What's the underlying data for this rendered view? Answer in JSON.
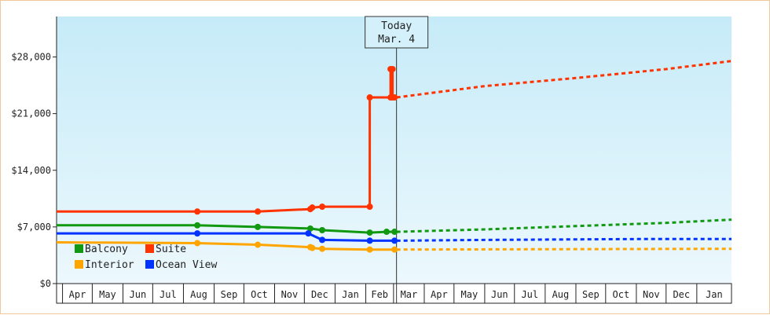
{
  "chart_data": {
    "type": "line",
    "title": "",
    "xlabel": "",
    "ylabel": "",
    "ylim": [
      0,
      33000
    ],
    "y_ticks": [
      {
        "value": 0,
        "label": "$0"
      },
      {
        "value": 7000,
        "label": "$7,000"
      },
      {
        "value": 14000,
        "label": "$14,000"
      },
      {
        "value": 21000,
        "label": "$21,000"
      },
      {
        "value": 28000,
        "label": "$28,000"
      }
    ],
    "x_range": [
      "2014-03-26",
      "2016-02-05"
    ],
    "x_ticks": [
      {
        "date": "2014-04-01",
        "label": "Apr"
      },
      {
        "date": "2014-05-01",
        "label": "May"
      },
      {
        "date": "2014-06-01",
        "label": "Jun"
      },
      {
        "date": "2014-07-01",
        "label": "Jul"
      },
      {
        "date": "2014-08-01",
        "label": "Aug"
      },
      {
        "date": "2014-09-01",
        "label": "Sep"
      },
      {
        "date": "2014-10-01",
        "label": "Oct"
      },
      {
        "date": "2014-11-01",
        "label": "Nov"
      },
      {
        "date": "2014-12-01",
        "label": "Dec"
      },
      {
        "date": "2015-01-01",
        "label": "Jan"
      },
      {
        "date": "2015-02-01",
        "label": "Feb"
      },
      {
        "date": "2015-03-01",
        "label": "Mar"
      },
      {
        "date": "2015-04-01",
        "label": "Apr"
      },
      {
        "date": "2015-05-01",
        "label": "May"
      },
      {
        "date": "2015-06-01",
        "label": "Jun"
      },
      {
        "date": "2015-07-01",
        "label": "Jul"
      },
      {
        "date": "2015-08-01",
        "label": "Aug"
      },
      {
        "date": "2015-09-01",
        "label": "Sep"
      },
      {
        "date": "2015-10-01",
        "label": "Oct"
      },
      {
        "date": "2015-11-01",
        "label": "Nov"
      },
      {
        "date": "2015-12-01",
        "label": "Dec"
      },
      {
        "date": "2016-01-01",
        "label": "Jan"
      }
    ],
    "today": {
      "date": "2015-03-04",
      "label_line1": "Today",
      "label_line2": "Mar. 4"
    },
    "grid": false,
    "legend_position": "bottom-left",
    "series": [
      {
        "name": "Balcony",
        "color": "#119911",
        "history": [
          [
            "2014-03-26",
            7200
          ],
          [
            "2014-08-15",
            7200
          ],
          [
            "2014-10-15",
            7000
          ],
          [
            "2014-12-07",
            6800
          ],
          [
            "2014-12-19",
            6600
          ],
          [
            "2015-02-05",
            6300
          ],
          [
            "2015-02-22",
            6400
          ],
          [
            "2015-03-02",
            6400
          ]
        ],
        "projection": [
          [
            "2015-03-04",
            6400
          ],
          [
            "2015-06-01",
            6700
          ],
          [
            "2015-09-01",
            7100
          ],
          [
            "2015-12-01",
            7500
          ],
          [
            "2016-02-05",
            7900
          ]
        ]
      },
      {
        "name": "Suite",
        "color": "#ff3300",
        "history": [
          [
            "2014-03-26",
            8900
          ],
          [
            "2014-08-15",
            8900
          ],
          [
            "2014-10-15",
            8900
          ],
          [
            "2014-12-07",
            9200
          ],
          [
            "2014-12-09",
            9400
          ],
          [
            "2014-12-19",
            9500
          ],
          [
            "2015-02-05",
            9500
          ],
          [
            "2015-02-05",
            23000
          ],
          [
            "2015-02-26",
            23000
          ],
          [
            "2015-02-26",
            26500
          ],
          [
            "2015-02-28",
            26500
          ],
          [
            "2015-02-28",
            23000
          ],
          [
            "2015-03-02",
            23000
          ]
        ],
        "projection": [
          [
            "2015-03-04",
            23000
          ],
          [
            "2015-06-01",
            24400
          ],
          [
            "2015-09-01",
            25400
          ],
          [
            "2015-12-01",
            26500
          ],
          [
            "2016-02-05",
            27500
          ]
        ]
      },
      {
        "name": "Interior",
        "color": "#ffa500",
        "history": [
          [
            "2014-03-26",
            5100
          ],
          [
            "2014-08-15",
            5000
          ],
          [
            "2014-10-15",
            4800
          ],
          [
            "2014-12-07",
            4500
          ],
          [
            "2014-12-09",
            4400
          ],
          [
            "2014-12-19",
            4300
          ],
          [
            "2015-02-05",
            4200
          ],
          [
            "2015-03-02",
            4200
          ]
        ],
        "projection": [
          [
            "2015-03-04",
            4200
          ],
          [
            "2016-02-05",
            4300
          ]
        ]
      },
      {
        "name": "Ocean View",
        "color": "#0033ff",
        "history": [
          [
            "2014-03-26",
            6200
          ],
          [
            "2014-08-15",
            6200
          ],
          [
            "2014-12-05",
            6200
          ],
          [
            "2014-12-19",
            5400
          ],
          [
            "2015-02-05",
            5300
          ],
          [
            "2015-03-02",
            5300
          ]
        ],
        "projection": [
          [
            "2015-03-04",
            5300
          ],
          [
            "2015-06-01",
            5400
          ],
          [
            "2015-11-01",
            5500
          ],
          [
            "2016-02-05",
            5500
          ]
        ]
      }
    ]
  }
}
